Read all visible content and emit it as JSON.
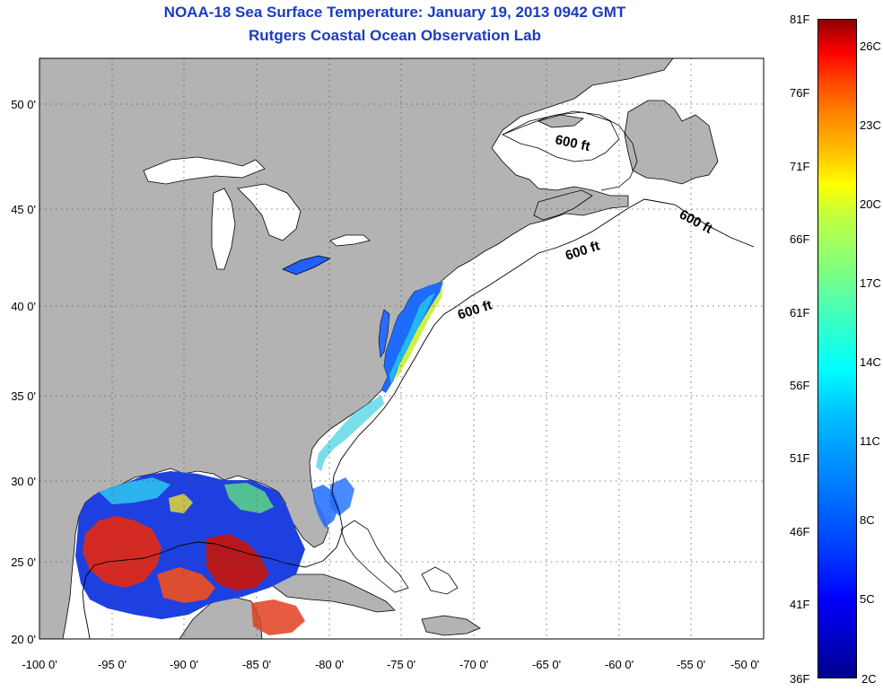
{
  "header": {
    "title": "NOAA-18 Sea Surface Temperature:  January 19, 2013 0942 GMT",
    "subtitle": "Rutgers Coastal Ocean Observation Lab"
  },
  "axes": {
    "lon_ticks": [
      "-100 0'",
      "-95 0'",
      "-90 0'",
      "-85 0'",
      "-80 0'",
      "-75 0'",
      "-70 0'",
      "-65 0'",
      "-60 0'",
      "-55 0'",
      "-50 0'"
    ],
    "lat_ticks": [
      "50 0'",
      "45 0'",
      "40 0'",
      "35 0'",
      "30 0'",
      "25 0'",
      "20 0'"
    ],
    "lon_range": [
      -100,
      -50
    ],
    "lat_range": [
      20,
      52.5
    ],
    "grid": "dotted"
  },
  "contours": {
    "label": "600 ft",
    "label_count": 4
  },
  "colorbar": {
    "fahrenheit": [
      "81F",
      "76F",
      "71F",
      "66F",
      "61F",
      "56F",
      "51F",
      "46F",
      "41F",
      "36F"
    ],
    "celsius": [
      "26C",
      "23C",
      "20C",
      "17C",
      "14C",
      "11C",
      "8C",
      "5C",
      "2C"
    ],
    "range_f": [
      36,
      81
    ],
    "colormap": "jet"
  },
  "colors": {
    "title": "#1a3cc0",
    "land": "#b3b3b3",
    "ocean_no_data": "#ffffff"
  }
}
